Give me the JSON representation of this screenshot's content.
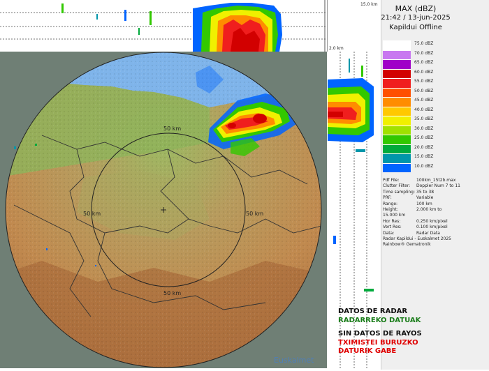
{
  "header": {
    "product": "MAX (dBZ)",
    "timestamp": "21:42 / 13-jun-2025",
    "station": "Kapildui Offline"
  },
  "scale_top_label": "15.0 km",
  "scale_side_label": "2.0 km",
  "range_rings": {
    "inner": "50 km",
    "east": "50 km",
    "west": "50 km",
    "south": "50 km"
  },
  "legend": {
    "title": "dBZ",
    "levels": [
      {
        "label": "75.0 dBZ",
        "color": "#ffffff"
      },
      {
        "label": "70.0 dBZ",
        "color": "#c878f0"
      },
      {
        "label": "65.0 dBZ",
        "color": "#a000c8"
      },
      {
        "label": "60.0 dBZ",
        "color": "#d20000"
      },
      {
        "label": "55.0 dBZ",
        "color": "#f01e1e"
      },
      {
        "label": "50.0 dBZ",
        "color": "#ff5000"
      },
      {
        "label": "45.0 dBZ",
        "color": "#ff8c00"
      },
      {
        "label": "40.0 dBZ",
        "color": "#ffc800"
      },
      {
        "label": "35.0 dBZ",
        "color": "#f0f000"
      },
      {
        "label": "30.0 dBZ",
        "color": "#a0e100"
      },
      {
        "label": "25.0 dBZ",
        "color": "#32c800"
      },
      {
        "label": "20.0 dBZ",
        "color": "#00aa3c"
      },
      {
        "label": "15.0 dBZ",
        "color": "#0096aa"
      },
      {
        "label": "10.0 dBZ",
        "color": "#0064ff"
      }
    ]
  },
  "metadata": [
    {
      "k": "Pdf File:",
      "v": "100km_15t2b.max"
    },
    {
      "k": "Clutter Filter:",
      "v": "Doppler Num 7 to 11"
    },
    {
      "k": "Time sampling:",
      "v": "35 to 38"
    },
    {
      "k": "PRF:",
      "v": "Variable"
    },
    {
      "k": "Range:",
      "v": "100 km"
    },
    {
      "k": "Height:",
      "v": "2.000 km to"
    },
    {
      "k": "",
      "v": "15.000 km"
    },
    {
      "k": "Hor Res:",
      "v": "0.250 km/pixel"
    },
    {
      "k": "Vert Res:",
      "v": "0.100 km/pixel"
    },
    {
      "k": "Data:",
      "v": "Radar Data"
    },
    {
      "k": "",
      "v": "Radar Kapildui - Euskalmet 2025"
    },
    {
      "k": "",
      "v": "Rainbow® Gematronik"
    }
  ],
  "status": {
    "radar_es": "DATOS DE RADAR",
    "radar_eu": "RADARREKO DATUAK",
    "rayos_es": "SIN DATOS DE RAYOS",
    "rayos_eu_1": "TXIMISTEI BURUZKO",
    "rayos_eu_2": "DATURIK GABE"
  },
  "logo": "Euskalmet",
  "colors": {
    "sea": "#7fb4ea",
    "land_low": "#8fb35a",
    "land_mid": "#b99659",
    "land_high": "#a86b3b",
    "status_green": "#1a7d1a",
    "status_red": "#e00000"
  }
}
